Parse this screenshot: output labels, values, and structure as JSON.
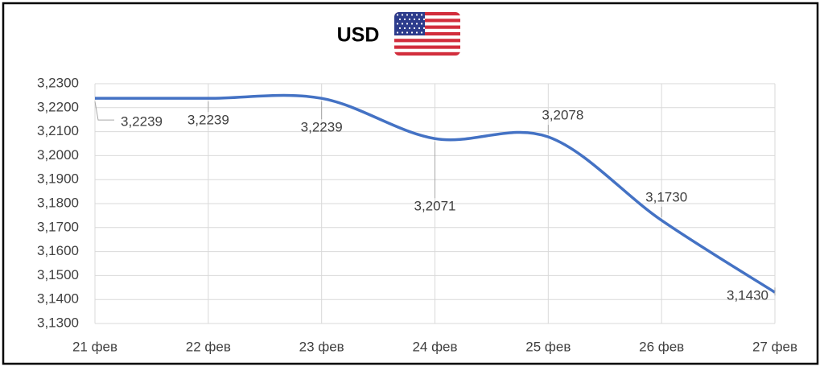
{
  "chart_data": {
    "type": "line",
    "title": "USD",
    "categories": [
      "21 фев",
      "22 фев",
      "23 фев",
      "24 фев",
      "25 фев",
      "26 фев",
      "27 фев"
    ],
    "series": [
      {
        "color": "#4472c4",
        "values": [
          3.2239,
          3.2239,
          3.2239,
          3.2071,
          3.2078,
          3.173,
          3.143
        ],
        "value_labels": [
          "3,2239",
          "3,2239",
          "3,2239",
          "3,2071",
          "3,2078",
          "3,1730",
          "3,1430"
        ]
      }
    ],
    "ylim": [
      3.13,
      3.23
    ],
    "yticks": [
      {
        "value": 3.13,
        "label": "3,1300"
      },
      {
        "value": 3.14,
        "label": "3,1400"
      },
      {
        "value": 3.15,
        "label": "3,1500"
      },
      {
        "value": 3.16,
        "label": "3,1600"
      },
      {
        "value": 3.17,
        "label": "3,1700"
      },
      {
        "value": 3.18,
        "label": "3,1800"
      },
      {
        "value": 3.19,
        "label": "3,1900"
      },
      {
        "value": 3.2,
        "label": "3,2000"
      },
      {
        "value": 3.21,
        "label": "3,2100"
      },
      {
        "value": 3.22,
        "label": "3,2200"
      },
      {
        "value": 3.23,
        "label": "3,2300"
      }
    ],
    "grid": true,
    "smooth": true
  }
}
